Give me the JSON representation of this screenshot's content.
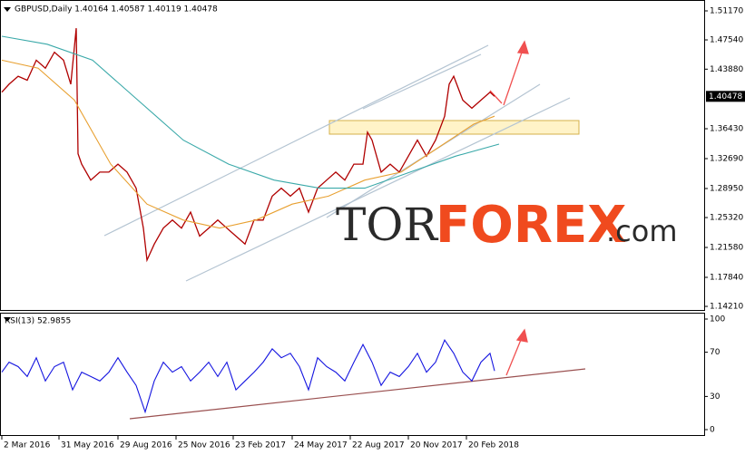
{
  "chart_data": [
    {
      "type": "line",
      "title": "GBPUSD,Daily  1.40164 1.40587 1.40119 1.40478",
      "xlim": [
        -2,
        774
      ],
      "ylim": [
        1.1376,
        1.5253
      ],
      "yticks": [
        {
          "value": 1.5117,
          "label": "1.51170"
        },
        {
          "value": 1.4754,
          "label": "1.47540"
        },
        {
          "value": 1.4388,
          "label": "1.43880"
        },
        {
          "value": 1.3643,
          "label": "1.36430"
        },
        {
          "value": 1.3269,
          "label": "1.32690"
        },
        {
          "value": 1.2895,
          "label": "1.28950"
        },
        {
          "value": 1.2532,
          "label": "1.25320"
        },
        {
          "value": 1.2158,
          "label": "1.21580"
        },
        {
          "value": 1.1784,
          "label": "1.17840"
        },
        {
          "value": 1.1421,
          "label": "1.14210"
        }
      ],
      "current_price": 1.40478,
      "watermark": [
        "TOR",
        "FOREX",
        ".com"
      ],
      "series": [
        {
          "color": "#b00000",
          "x": [
            0,
            8,
            18,
            28,
            38,
            48,
            58,
            68,
            76,
            82,
            84,
            88,
            98,
            108,
            118,
            128,
            138,
            148,
            156,
            160,
            168,
            178,
            188,
            198,
            208,
            218,
            228,
            238,
            248,
            258,
            268,
            278,
            288,
            298,
            308,
            318,
            328,
            338,
            348,
            358,
            368,
            378,
            388,
            398,
            403,
            408,
            418,
            428,
            438,
            448,
            458,
            468,
            478,
            488,
            493,
            498,
            508,
            518,
            528,
            538,
            543
          ],
          "values": [
            1.41,
            1.42,
            1.43,
            1.425,
            1.45,
            1.44,
            1.46,
            1.45,
            1.42,
            1.49,
            1.333,
            1.32,
            1.3,
            1.31,
            1.31,
            1.32,
            1.31,
            1.29,
            1.24,
            1.2,
            1.22,
            1.24,
            1.25,
            1.24,
            1.26,
            1.23,
            1.24,
            1.25,
            1.24,
            1.23,
            1.22,
            1.25,
            1.25,
            1.28,
            1.29,
            1.28,
            1.29,
            1.26,
            1.29,
            1.3,
            1.31,
            1.3,
            1.32,
            1.32,
            1.36,
            1.35,
            1.31,
            1.32,
            1.31,
            1.33,
            1.35,
            1.33,
            1.35,
            1.38,
            1.42,
            1.43,
            1.4,
            1.39,
            1.4,
            1.41,
            1.40478
          ]
        },
        {
          "color": "#e8a030",
          "x": [
            0,
            40,
            80,
            120,
            160,
            200,
            240,
            280,
            320,
            360,
            400,
            440,
            480,
            520,
            543
          ],
          "values": [
            1.45,
            1.44,
            1.4,
            1.32,
            1.27,
            1.25,
            1.24,
            1.25,
            1.27,
            1.28,
            1.3,
            1.31,
            1.34,
            1.37,
            1.38
          ]
        },
        {
          "color": "#3aa9a9",
          "x": [
            0,
            50,
            100,
            150,
            200,
            250,
            300,
            350,
            400,
            450,
            500,
            548
          ],
          "values": [
            1.48,
            1.47,
            1.45,
            1.4,
            1.35,
            1.32,
            1.3,
            1.29,
            1.29,
            1.31,
            1.33,
            1.345
          ]
        }
      ]
    },
    {
      "type": "line",
      "title": "RSI(13) 52.9855",
      "xlim": [
        -2,
        774
      ],
      "ylim": [
        0,
        100
      ],
      "yticks": [
        100,
        70,
        30,
        0
      ],
      "xticks": [
        {
          "value": 0,
          "label": "2 Mar 2016"
        },
        {
          "value": 63,
          "label": "31 May 2016"
        },
        {
          "value": 128,
          "label": "29 Aug 2016"
        },
        {
          "value": 192,
          "label": "25 Nov 2016"
        },
        {
          "value": 255,
          "label": "23 Feb 2017"
        },
        {
          "value": 320,
          "label": "24 May 2017"
        },
        {
          "value": 384,
          "label": "22 Aug 2017"
        },
        {
          "value": 448,
          "label": "20 Nov 2017"
        },
        {
          "value": 512,
          "label": "20 Feb 2018"
        }
      ],
      "series": [
        {
          "color": "#1515e0",
          "x": [
            0,
            8,
            18,
            28,
            38,
            48,
            58,
            68,
            78,
            88,
            98,
            108,
            118,
            128,
            138,
            148,
            158,
            168,
            178,
            188,
            198,
            208,
            218,
            228,
            238,
            248,
            258,
            268,
            278,
            288,
            298,
            308,
            318,
            328,
            338,
            348,
            358,
            368,
            378,
            388,
            398,
            408,
            418,
            428,
            438,
            448,
            458,
            468,
            478,
            488,
            498,
            508,
            518,
            528,
            538,
            543
          ],
          "values": [
            52,
            61,
            57,
            48,
            65,
            44,
            57,
            61,
            36,
            52,
            48,
            44,
            52,
            65,
            52,
            40,
            16,
            44,
            61,
            52,
            57,
            44,
            52,
            61,
            48,
            61,
            36,
            44,
            52,
            61,
            73,
            65,
            69,
            57,
            36,
            65,
            57,
            52,
            44,
            61,
            77,
            61,
            40,
            52,
            48,
            57,
            69,
            52,
            61,
            81,
            69,
            52,
            44,
            61,
            69,
            53
          ]
        }
      ]
    }
  ]
}
